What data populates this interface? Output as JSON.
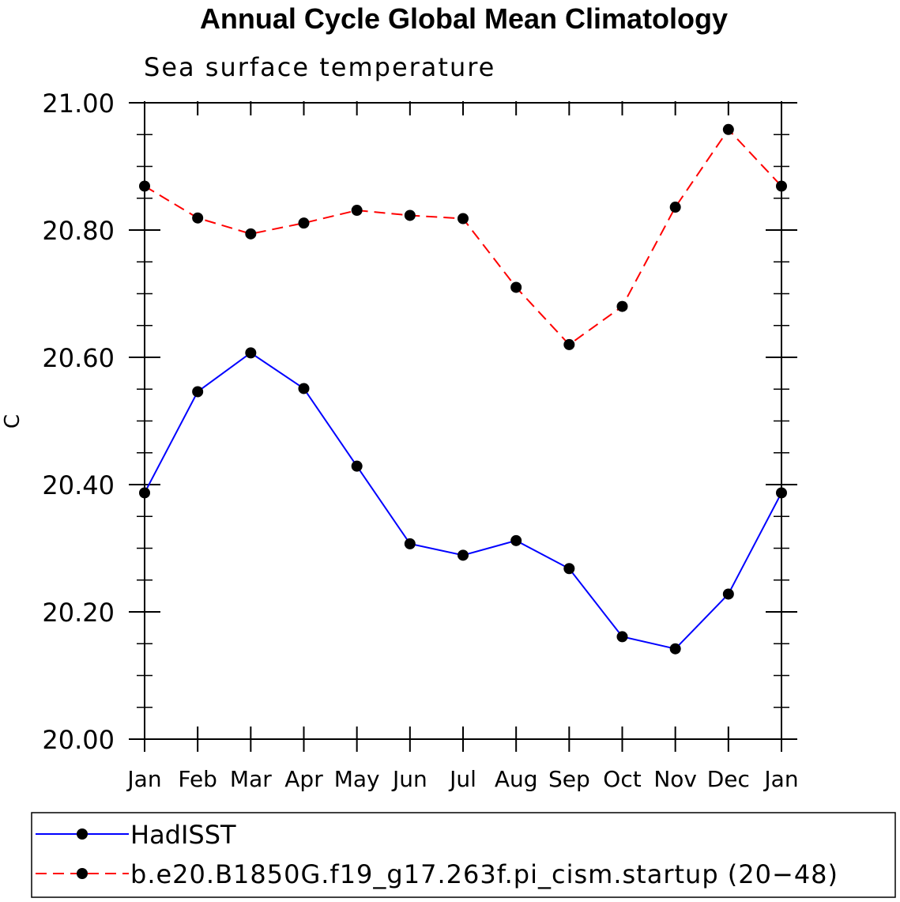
{
  "chart_data": {
    "type": "line",
    "title": "Annual Cycle Global Mean Climatology",
    "subtitle": "Sea surface temperature",
    "ylabel": "C",
    "xlabel": "",
    "ylim": [
      20.0,
      21.0
    ],
    "yticks": [
      "20.00",
      "20.20",
      "20.40",
      "20.60",
      "20.80",
      "21.00"
    ],
    "categories": [
      "Jan",
      "Feb",
      "Mar",
      "Apr",
      "May",
      "Jun",
      "Jul",
      "Aug",
      "Sep",
      "Oct",
      "Nov",
      "Dec",
      "Jan"
    ],
    "series": [
      {
        "name": "HadISST",
        "color": "#0000ff",
        "dash": "solid",
        "values": [
          20.387,
          20.546,
          20.607,
          20.551,
          20.429,
          20.307,
          20.289,
          20.312,
          20.268,
          20.161,
          20.142,
          20.228,
          20.387
        ]
      },
      {
        "name": "b.e20.B1850G.f19_g17.263f.pi_cism.startup (20−48)",
        "color": "#ff0000",
        "dash": "dashed",
        "values": [
          20.869,
          20.819,
          20.794,
          20.811,
          20.831,
          20.823,
          20.818,
          20.71,
          20.62,
          20.68,
          20.836,
          20.958,
          20.869
        ]
      }
    ],
    "grid": false,
    "legend": "bottom"
  }
}
